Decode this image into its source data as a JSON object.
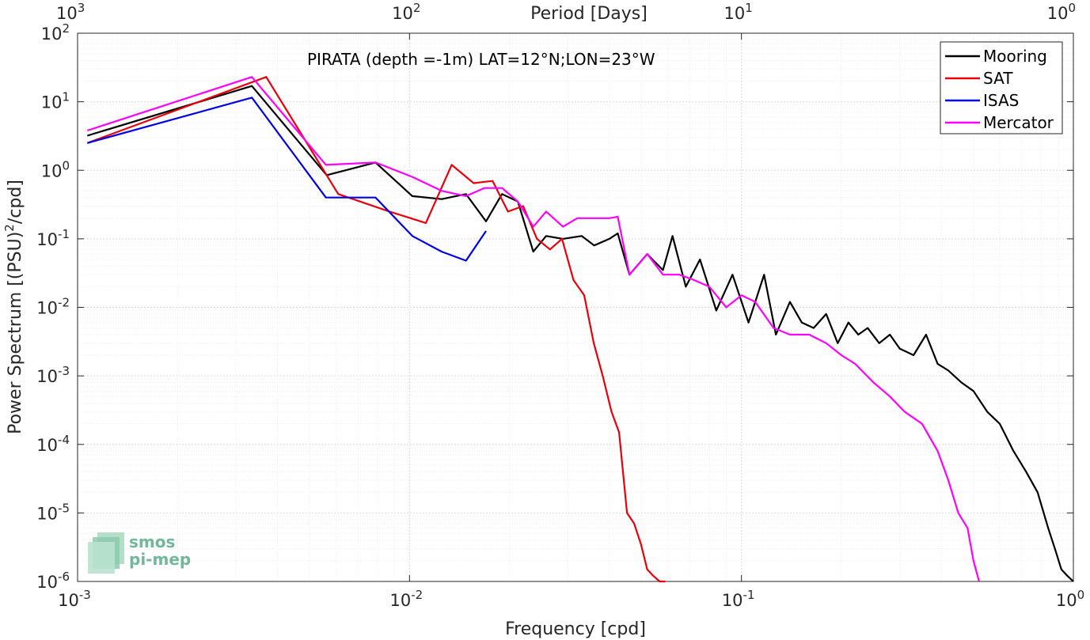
{
  "chart_data": {
    "type": "line",
    "annotation": "PIRATA (depth =-1m) LAT=12°N;LON=23°W",
    "xlabel": "Frequency [cpd]",
    "ylabel": "Power Spectrum [(PSU)",
    "ylabel_sup": "2",
    "ylabel_tail": "/cpd]",
    "top_xlabel": "Period [Days]",
    "xscale": "log",
    "yscale": "log",
    "xlim": [
      0.001,
      1
    ],
    "ylim": [
      1e-06,
      100
    ],
    "x_ticks": [
      {
        "value": 0.001,
        "base": "10",
        "exp": "-3"
      },
      {
        "value": 0.01,
        "base": "10",
        "exp": "-2"
      },
      {
        "value": 0.1,
        "base": "10",
        "exp": "-1"
      },
      {
        "value": 1,
        "base": "10",
        "exp": "0"
      }
    ],
    "y_ticks": [
      {
        "value": 1e-06,
        "base": "10",
        "exp": "-6"
      },
      {
        "value": 1e-05,
        "base": "10",
        "exp": "-5"
      },
      {
        "value": 0.0001,
        "base": "10",
        "exp": "-4"
      },
      {
        "value": 0.001,
        "base": "10",
        "exp": "-3"
      },
      {
        "value": 0.01,
        "base": "10",
        "exp": "-2"
      },
      {
        "value": 0.1,
        "base": "10",
        "exp": "-1"
      },
      {
        "value": 1,
        "base": "10",
        "exp": "0"
      },
      {
        "value": 10,
        "base": "10",
        "exp": "1"
      },
      {
        "value": 100,
        "base": "10",
        "exp": "2"
      }
    ],
    "top_ticks": [
      {
        "period": 1000,
        "base": "10",
        "exp": "3"
      },
      {
        "period": 100,
        "base": "10",
        "exp": "2"
      },
      {
        "period": 10,
        "base": "10",
        "exp": "1"
      },
      {
        "period": 1,
        "base": "10",
        "exp": "0"
      }
    ],
    "grid": true,
    "legend_position": "top-right",
    "series": [
      {
        "name": "Mooring",
        "color": "#000000",
        "x": [
          0.00107,
          0.00335,
          0.00563,
          0.0079,
          0.0102,
          0.0125,
          0.0148,
          0.017,
          0.019,
          0.0212,
          0.0236,
          0.0258,
          0.029,
          0.033,
          0.036,
          0.04,
          0.0424,
          0.046,
          0.052,
          0.058,
          0.062,
          0.068,
          0.075,
          0.084,
          0.094,
          0.105,
          0.117,
          0.127,
          0.14,
          0.152,
          0.165,
          0.18,
          0.195,
          0.21,
          0.225,
          0.24,
          0.26,
          0.28,
          0.3,
          0.33,
          0.36,
          0.39,
          0.42,
          0.46,
          0.5,
          0.55,
          0.6,
          0.66,
          0.72,
          0.78,
          0.84,
          0.88,
          0.92,
          0.96,
          1.0
        ],
        "y": [
          3.2,
          17,
          0.85,
          1.3,
          0.42,
          0.38,
          0.45,
          0.18,
          0.45,
          0.35,
          0.065,
          0.11,
          0.1,
          0.11,
          0.08,
          0.1,
          0.12,
          0.03,
          0.06,
          0.035,
          0.11,
          0.02,
          0.05,
          0.009,
          0.03,
          0.006,
          0.03,
          0.004,
          0.012,
          0.006,
          0.005,
          0.008,
          0.003,
          0.006,
          0.004,
          0.005,
          0.003,
          0.004,
          0.0025,
          0.002,
          0.004,
          0.0015,
          0.0012,
          0.0008,
          0.0006,
          0.0003,
          0.0002,
          8e-05,
          4e-05,
          2e-05,
          6e-06,
          3e-06,
          1.5e-06,
          1.2e-06,
          1e-06
        ]
      },
      {
        "name": "SAT",
        "color": "#e8000b",
        "x": [
          0.00107,
          0.0037,
          0.0061,
          0.0087,
          0.0112,
          0.0134,
          0.0156,
          0.0178,
          0.0198,
          0.022,
          0.0242,
          0.0265,
          0.0288,
          0.0312,
          0.0336,
          0.0359,
          0.0382,
          0.0406,
          0.0428,
          0.0452,
          0.0475,
          0.0498,
          0.052,
          0.0543,
          0.0567,
          0.059
        ],
        "y": [
          2.5,
          23,
          0.45,
          0.25,
          0.17,
          1.2,
          0.65,
          0.7,
          0.25,
          0.3,
          0.1,
          0.07,
          0.1,
          0.025,
          0.015,
          0.003,
          0.001,
          0.0003,
          0.00015,
          1e-05,
          7e-06,
          3.5e-06,
          1.5e-06,
          1.2e-06,
          1e-06,
          1e-06
        ]
      },
      {
        "name": "ISAS",
        "color": "#0000e6",
        "x": [
          0.00107,
          0.00335,
          0.0056,
          0.0079,
          0.0102,
          0.0125,
          0.0148,
          0.017
        ],
        "y": [
          2.5,
          11.5,
          0.4,
          0.4,
          0.11,
          0.065,
          0.048,
          0.13
        ]
      },
      {
        "name": "Mercator",
        "color": "#ff00ff",
        "x": [
          0.00107,
          0.00335,
          0.0056,
          0.0079,
          0.0102,
          0.0125,
          0.0148,
          0.0168,
          0.019,
          0.0212,
          0.0236,
          0.0258,
          0.029,
          0.032,
          0.036,
          0.04,
          0.0424,
          0.046,
          0.052,
          0.058,
          0.065,
          0.072,
          0.08,
          0.09,
          0.1,
          0.11,
          0.125,
          0.14,
          0.16,
          0.18,
          0.2,
          0.22,
          0.25,
          0.28,
          0.31,
          0.35,
          0.39,
          0.42,
          0.45,
          0.48,
          0.5,
          0.52
        ],
        "y": [
          3.8,
          23,
          1.2,
          1.3,
          0.8,
          0.5,
          0.42,
          0.55,
          0.55,
          0.35,
          0.15,
          0.25,
          0.15,
          0.2,
          0.2,
          0.2,
          0.21,
          0.03,
          0.06,
          0.03,
          0.03,
          0.025,
          0.02,
          0.01,
          0.015,
          0.012,
          0.005,
          0.004,
          0.004,
          0.003,
          0.002,
          0.0015,
          0.0008,
          0.0005,
          0.0003,
          0.0002,
          8e-05,
          3e-05,
          1e-05,
          6e-06,
          2e-06,
          1e-06
        ]
      }
    ]
  },
  "logo": {
    "line1": "smos",
    "line2": "pi-mep"
  }
}
